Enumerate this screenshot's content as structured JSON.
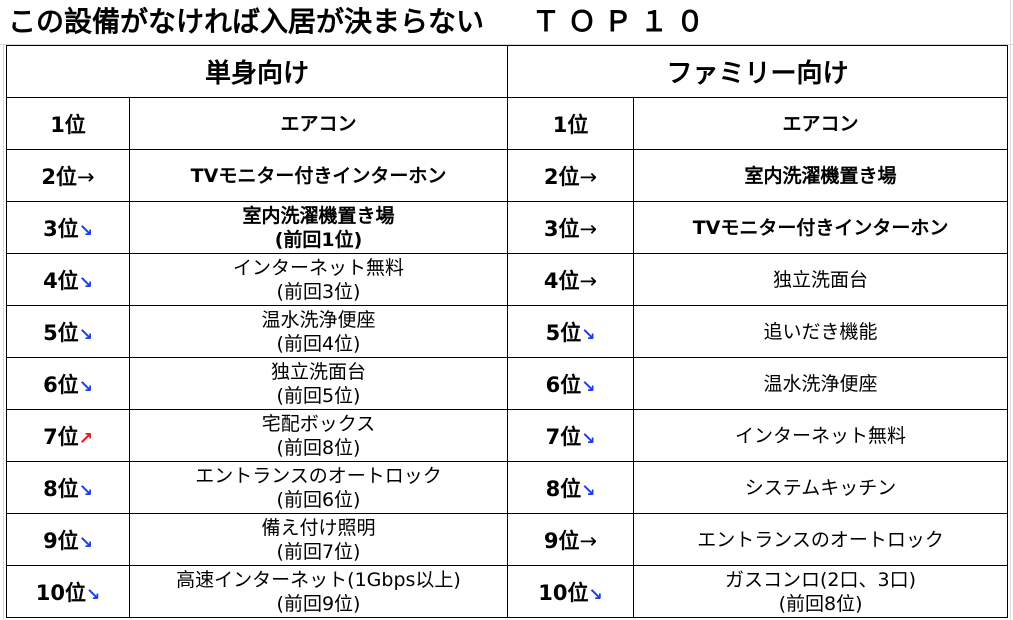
{
  "title": "この設備がなければ入居が決まらない",
  "title_suffix": "ＴＯＰ１０",
  "columns": {
    "single": "単身向け",
    "family": "ファミリー向け"
  },
  "arrow_glyphs": {
    "flat": "→",
    "down": "↘",
    "up": "↗"
  },
  "colors": {
    "down_arrow": "#1a3cf5",
    "up_arrow": "#e01818",
    "border": "#000000"
  },
  "rows": [
    {
      "single": {
        "rank": "1位",
        "trend": "",
        "lines": [
          "エアコン"
        ],
        "bold": true
      },
      "family": {
        "rank": "1位",
        "trend": "",
        "lines": [
          "エアコン"
        ],
        "bold": true
      }
    },
    {
      "single": {
        "rank": "2位",
        "trend": "flat",
        "lines": [
          "TVモニター付きインターホン"
        ],
        "bold": true
      },
      "family": {
        "rank": "2位",
        "trend": "flat",
        "lines": [
          "室内洗濯機置き場"
        ],
        "bold": true
      }
    },
    {
      "single": {
        "rank": "3位",
        "trend": "down",
        "lines": [
          "室内洗濯機置き場",
          "(前回1位)"
        ],
        "bold": true
      },
      "family": {
        "rank": "3位",
        "trend": "flat",
        "lines": [
          "TVモニター付きインターホン"
        ],
        "bold": true
      }
    },
    {
      "single": {
        "rank": "4位",
        "trend": "down",
        "lines": [
          "インターネット無料",
          "(前回3位)"
        ],
        "bold": false
      },
      "family": {
        "rank": "4位",
        "trend": "flat",
        "lines": [
          "独立洗面台"
        ],
        "bold": false
      }
    },
    {
      "single": {
        "rank": "5位",
        "trend": "down",
        "lines": [
          "温水洗浄便座",
          "(前回4位)"
        ],
        "bold": false
      },
      "family": {
        "rank": "5位",
        "trend": "down",
        "lines": [
          "追いだき機能"
        ],
        "bold": false
      }
    },
    {
      "single": {
        "rank": "6位",
        "trend": "down",
        "lines": [
          "独立洗面台",
          "(前回5位)"
        ],
        "bold": false
      },
      "family": {
        "rank": "6位",
        "trend": "down",
        "lines": [
          "温水洗浄便座"
        ],
        "bold": false
      }
    },
    {
      "single": {
        "rank": "7位",
        "trend": "up",
        "lines": [
          "宅配ボックス",
          "(前回8位)"
        ],
        "bold": false
      },
      "family": {
        "rank": "7位",
        "trend": "down",
        "lines": [
          "インターネット無料"
        ],
        "bold": false
      }
    },
    {
      "single": {
        "rank": "8位",
        "trend": "down",
        "lines": [
          "エントランスのオートロック",
          "(前回6位)"
        ],
        "bold": false
      },
      "family": {
        "rank": "8位",
        "trend": "down",
        "lines": [
          "システムキッチン"
        ],
        "bold": false
      }
    },
    {
      "single": {
        "rank": "9位",
        "trend": "down",
        "lines": [
          "備え付け照明",
          "(前回7位)"
        ],
        "bold": false
      },
      "family": {
        "rank": "9位",
        "trend": "flat",
        "lines": [
          "エントランスのオートロック"
        ],
        "bold": false
      }
    },
    {
      "single": {
        "rank": "10位",
        "trend": "down",
        "lines": [
          "高速インターネット(1Gbps以上)",
          "(前回9位)"
        ],
        "bold": false
      },
      "family": {
        "rank": "10位",
        "trend": "down",
        "lines": [
          "ガスコンロ(2口、3口)",
          "(前回8位)"
        ],
        "bold": false
      }
    }
  ]
}
